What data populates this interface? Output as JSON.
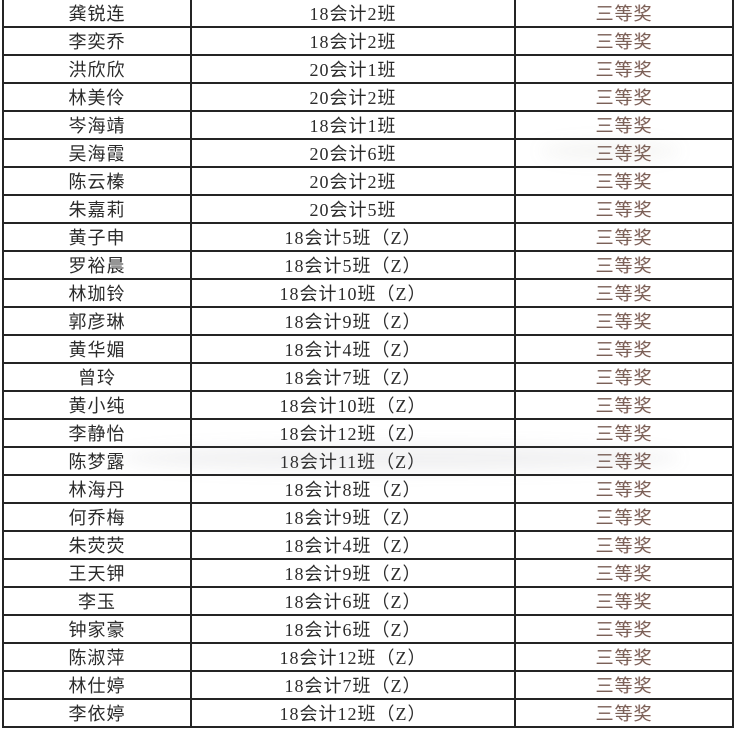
{
  "colors": {
    "background": "#ffffff",
    "text": "#2b2b2b",
    "award_text": "#7a6158",
    "border": "#242424"
  },
  "table": {
    "rows": [
      {
        "name": "龚锐连",
        "class_name": "18会计2班",
        "award": "三等奖"
      },
      {
        "name": "李奕乔",
        "class_name": "18会计2班",
        "award": "三等奖"
      },
      {
        "name": "洪欣欣",
        "class_name": "20会计1班",
        "award": "三等奖"
      },
      {
        "name": "林美伶",
        "class_name": "20会计2班",
        "award": "三等奖"
      },
      {
        "name": "岑海靖",
        "class_name": "18会计1班",
        "award": "三等奖"
      },
      {
        "name": "吴海霞",
        "class_name": "20会计6班",
        "award": "三等奖"
      },
      {
        "name": "陈云榛",
        "class_name": "20会计2班",
        "award": "三等奖"
      },
      {
        "name": "朱嘉莉",
        "class_name": "20会计5班",
        "award": "三等奖"
      },
      {
        "name": "黄子申",
        "class_name": "18会计5班（Z）",
        "award": "三等奖"
      },
      {
        "name": "罗裕晨",
        "class_name": "18会计5班（Z）",
        "award": "三等奖"
      },
      {
        "name": "林珈铃",
        "class_name": "18会计10班（Z）",
        "award": "三等奖"
      },
      {
        "name": "郭彦琳",
        "class_name": "18会计9班（Z）",
        "award": "三等奖"
      },
      {
        "name": "黄华媚",
        "class_name": "18会计4班（Z）",
        "award": "三等奖"
      },
      {
        "name": "曾玲",
        "class_name": "18会计7班（Z）",
        "award": "三等奖"
      },
      {
        "name": "黄小纯",
        "class_name": "18会计10班（Z）",
        "award": "三等奖"
      },
      {
        "name": "李静怡",
        "class_name": "18会计12班（Z）",
        "award": "三等奖"
      },
      {
        "name": "陈梦露",
        "class_name": "18会计11班（Z）",
        "award": "三等奖"
      },
      {
        "name": "林海丹",
        "class_name": "18会计8班（Z）",
        "award": "三等奖"
      },
      {
        "name": "何乔梅",
        "class_name": "18会计9班（Z）",
        "award": "三等奖"
      },
      {
        "name": "朱荧荧",
        "class_name": "18会计4班（Z）",
        "award": "三等奖"
      },
      {
        "name": "王天钾",
        "class_name": "18会计9班（Z）",
        "award": "三等奖"
      },
      {
        "name": "李玉",
        "class_name": "18会计6班（Z）",
        "award": "三等奖"
      },
      {
        "name": "钟家豪",
        "class_name": "18会计6班（Z）",
        "award": "三等奖"
      },
      {
        "name": "陈淑萍",
        "class_name": "18会计12班（Z）",
        "award": "三等奖"
      },
      {
        "name": "林仕婷",
        "class_name": "18会计7班（Z）",
        "award": "三等奖"
      },
      {
        "name": "李依婷",
        "class_name": "18会计12班（Z）",
        "award": "三等奖"
      }
    ]
  }
}
